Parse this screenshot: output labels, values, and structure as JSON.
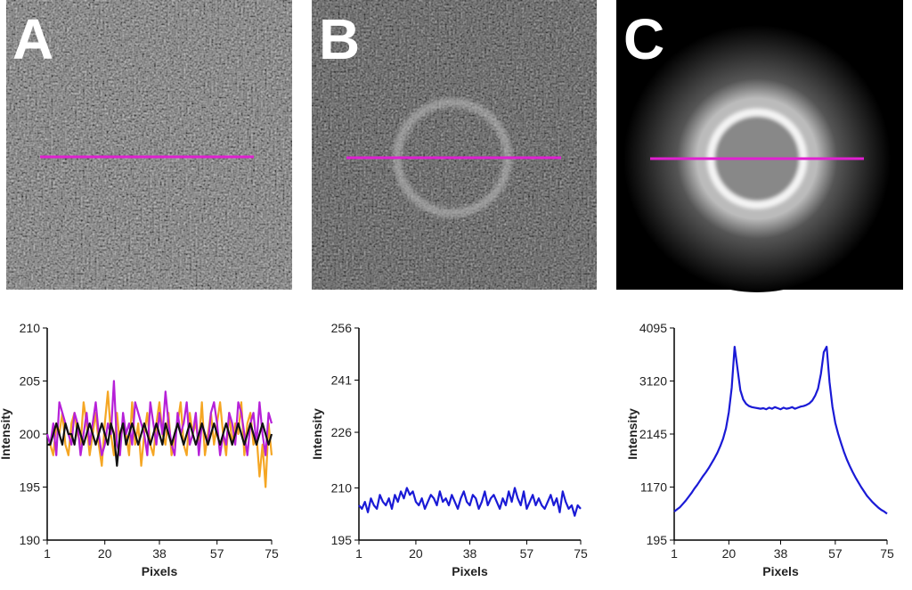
{
  "chart_data": [
    {
      "type": "line",
      "label": "A",
      "xlabel": "Pixels",
      "ylabel": "Intensity",
      "x": [
        1,
        2,
        3,
        4,
        5,
        6,
        7,
        8,
        9,
        10,
        11,
        12,
        13,
        14,
        15,
        16,
        17,
        18,
        19,
        20,
        21,
        22,
        23,
        24,
        25,
        26,
        27,
        28,
        29,
        30,
        31,
        32,
        33,
        34,
        35,
        36,
        37,
        38,
        39,
        40,
        41,
        42,
        43,
        44,
        45,
        46,
        47,
        48,
        49,
        50,
        51,
        52,
        53,
        54,
        55,
        56,
        57,
        58,
        59,
        60,
        61,
        62,
        63,
        64,
        65,
        66,
        67,
        68,
        69,
        70,
        71,
        72,
        73,
        74,
        75
      ],
      "xlim": [
        1,
        75
      ],
      "xticks": [
        1,
        20,
        38,
        57,
        75
      ],
      "ylim": [
        190,
        210
      ],
      "yticks": [
        190,
        195,
        200,
        205,
        210
      ],
      "series": [
        {
          "color": "#f5a623",
          "values": [
            199,
            199,
            198,
            201,
            200,
            202,
            199,
            198,
            201,
            202,
            200,
            199,
            203,
            201,
            198,
            200,
            202,
            199,
            197,
            201,
            204,
            200,
            198,
            202,
            199,
            201,
            200,
            198,
            203,
            199,
            201,
            197,
            200,
            202,
            199,
            198,
            201,
            203,
            200,
            199,
            202,
            198,
            200,
            201,
            203,
            199,
            198,
            202,
            200,
            201,
            199,
            203,
            198,
            200,
            202,
            199,
            201,
            203,
            200,
            198,
            202,
            199,
            201,
            200,
            203,
            198,
            201,
            202,
            199,
            200,
            196,
            199,
            195,
            201,
            198
          ]
        },
        {
          "color": "#b620d8",
          "values": [
            200,
            199,
            201,
            198,
            203,
            202,
            201,
            200,
            199,
            202,
            201,
            198,
            200,
            202,
            199,
            201,
            203,
            200,
            198,
            199,
            201,
            200,
            205,
            199,
            198,
            202,
            200,
            201,
            199,
            203,
            202,
            201,
            200,
            198,
            203,
            201,
            199,
            202,
            200,
            204,
            201,
            199,
            198,
            202,
            200,
            201,
            203,
            199,
            200,
            202,
            198,
            201,
            200,
            199,
            202,
            203,
            201,
            198,
            200,
            199,
            202,
            201,
            199,
            203,
            202,
            200,
            198,
            201,
            202,
            199,
            203,
            200,
            198,
            202,
            201
          ]
        },
        {
          "color": "#111111",
          "values": [
            199,
            199,
            200,
            201,
            200,
            199,
            201,
            200,
            200,
            199,
            201,
            200,
            199,
            200,
            201,
            200,
            199,
            200,
            201,
            200,
            199,
            201,
            200,
            197,
            200,
            201,
            199,
            200,
            201,
            200,
            199,
            200,
            201,
            200,
            199,
            200,
            201,
            200,
            199,
            201,
            200,
            199,
            200,
            201,
            200,
            199,
            200,
            201,
            200,
            199,
            200,
            201,
            200,
            199,
            200,
            201,
            200,
            199,
            200,
            201,
            200,
            199,
            200,
            201,
            200,
            199,
            200,
            201,
            200,
            199,
            200,
            201,
            200,
            199,
            200
          ]
        }
      ]
    },
    {
      "type": "line",
      "label": "B",
      "xlabel": "Pixels",
      "ylabel": "Intensity",
      "x": [
        1,
        2,
        3,
        4,
        5,
        6,
        7,
        8,
        9,
        10,
        11,
        12,
        13,
        14,
        15,
        16,
        17,
        18,
        19,
        20,
        21,
        22,
        23,
        24,
        25,
        26,
        27,
        28,
        29,
        30,
        31,
        32,
        33,
        34,
        35,
        36,
        37,
        38,
        39,
        40,
        41,
        42,
        43,
        44,
        45,
        46,
        47,
        48,
        49,
        50,
        51,
        52,
        53,
        54,
        55,
        56,
        57,
        58,
        59,
        60,
        61,
        62,
        63,
        64,
        65,
        66,
        67,
        68,
        69,
        70,
        71,
        72,
        73,
        74,
        75
      ],
      "xlim": [
        1,
        75
      ],
      "xticks": [
        1,
        20,
        38,
        57,
        75
      ],
      "ylim": [
        195,
        256
      ],
      "yticks": [
        195,
        210,
        226,
        241,
        256
      ],
      "series": [
        {
          "color": "#1a1ad6",
          "values": [
            205,
            204,
            206,
            203,
            207,
            205,
            204,
            208,
            206,
            205,
            207,
            204,
            208,
            206,
            209,
            207,
            210,
            208,
            209,
            206,
            205,
            207,
            204,
            206,
            208,
            207,
            205,
            209,
            206,
            207,
            205,
            208,
            206,
            204,
            207,
            209,
            206,
            205,
            208,
            207,
            204,
            206,
            209,
            205,
            207,
            208,
            206,
            204,
            207,
            205,
            209,
            206,
            210,
            207,
            205,
            209,
            204,
            206,
            208,
            205,
            207,
            205,
            204,
            206,
            208,
            205,
            207,
            203,
            209,
            206,
            204,
            205,
            202,
            205,
            204
          ]
        }
      ]
    },
    {
      "type": "line",
      "label": "C",
      "xlabel": "Pixels",
      "ylabel": "Intensity",
      "x": [
        1,
        2,
        3,
        4,
        5,
        6,
        7,
        8,
        9,
        10,
        11,
        12,
        13,
        14,
        15,
        16,
        17,
        18,
        19,
        20,
        21,
        22,
        23,
        24,
        25,
        26,
        27,
        28,
        29,
        30,
        31,
        32,
        33,
        34,
        35,
        36,
        37,
        38,
        39,
        40,
        41,
        42,
        43,
        44,
        45,
        46,
        47,
        48,
        49,
        50,
        51,
        52,
        53,
        54,
        55,
        56,
        57,
        58,
        59,
        60,
        61,
        62,
        63,
        64,
        65,
        66,
        67,
        68,
        69,
        70,
        71,
        72,
        73,
        74,
        75
      ],
      "xlim": [
        1,
        75
      ],
      "xticks": [
        1,
        20,
        38,
        57,
        75
      ],
      "ylim": [
        195,
        4095
      ],
      "yticks": [
        195,
        1170,
        2145,
        3120,
        4095
      ],
      "series": [
        {
          "color": "#1a1ad6",
          "values": [
            720,
            760,
            800,
            860,
            920,
            990,
            1060,
            1140,
            1210,
            1290,
            1370,
            1440,
            1520,
            1610,
            1700,
            1800,
            1920,
            2060,
            2250,
            2550,
            3000,
            3750,
            3350,
            2950,
            2780,
            2700,
            2660,
            2640,
            2630,
            2620,
            2610,
            2620,
            2600,
            2630,
            2610,
            2640,
            2620,
            2600,
            2630,
            2610,
            2620,
            2640,
            2610,
            2630,
            2650,
            2660,
            2680,
            2710,
            2760,
            2850,
            2980,
            3250,
            3650,
            3750,
            3100,
            2650,
            2350,
            2150,
            1980,
            1820,
            1680,
            1560,
            1450,
            1350,
            1260,
            1170,
            1090,
            1010,
            950,
            890,
            840,
            790,
            750,
            720,
            680
          ]
        }
      ]
    }
  ]
}
